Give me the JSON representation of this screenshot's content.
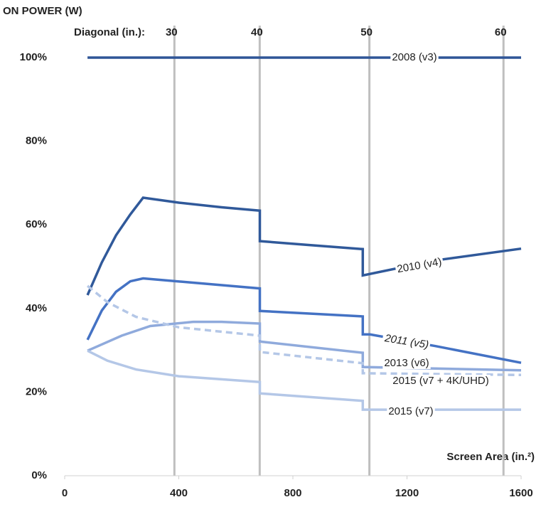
{
  "chart_data": {
    "type": "line",
    "title": "ON POWER (W)",
    "xlabel": "Screen Area (in.²)",
    "x2label": "Diagonal (in.):",
    "xlim": [
      0,
      1600
    ],
    "ylim": [
      0,
      100
    ],
    "xticks": [
      0,
      400,
      800,
      1200,
      1600
    ],
    "yticks": [
      {
        "value": 0,
        "label": "0%"
      },
      {
        "value": 20,
        "label": "20%"
      },
      {
        "value": 40,
        "label": "40%"
      },
      {
        "value": 60,
        "label": "60%"
      },
      {
        "value": 80,
        "label": "80%"
      },
      {
        "value": 100,
        "label": "100%"
      }
    ],
    "x2ticks": [
      {
        "value": 384.6,
        "label": "30"
      },
      {
        "value": 683.7,
        "label": "40"
      },
      {
        "value": 1068.2,
        "label": "50"
      },
      {
        "value": 1538.3,
        "label": "60"
      }
    ],
    "grid": true,
    "series": [
      {
        "name": "2008 (v3)",
        "color": "#2f5597",
        "x": [
          80,
          1600
        ],
        "values": [
          100,
          100
        ]
      },
      {
        "name": "2010 (v4)",
        "color": "#30599a",
        "x": [
          80,
          130,
          180,
          230,
          275,
          400,
          550,
          684,
          684,
          850,
          1045,
          1045,
          1300,
          1600
        ],
        "values": [
          43.2,
          51,
          57.5,
          62.5,
          66.5,
          65.3,
          64.2,
          63.4,
          56.1,
          55.2,
          54.2,
          47.9,
          51.5,
          54.3
        ]
      },
      {
        "name": "2011 (v5)",
        "color": "#4472c4",
        "x": [
          80,
          130,
          180,
          230,
          275,
          684,
          684,
          1045,
          1045,
          1070,
          1300,
          1600
        ],
        "values": [
          32.5,
          39.5,
          44,
          46.5,
          47.2,
          44.8,
          39.4,
          38.1,
          33.8,
          33.8,
          31,
          27.0
        ]
      },
      {
        "name": "2013 (v6)",
        "color": "#8faadc",
        "x": [
          80,
          200,
          300,
          450,
          550,
          684,
          684,
          1045,
          1045,
          1600
        ],
        "values": [
          29.9,
          33.5,
          35.8,
          36.8,
          36.8,
          36.4,
          32.1,
          29.4,
          26.0,
          25.2
        ]
      },
      {
        "name": "2015 (v7 + 4K/UHD)",
        "color": "#b4c7e7",
        "dashed": true,
        "x": [
          80,
          150,
          250,
          400,
          684,
          684,
          1045,
          1045,
          1600
        ],
        "values": [
          45.4,
          41.5,
          38,
          35.5,
          33.5,
          29.6,
          26.9,
          24.5,
          24.1
        ]
      },
      {
        "name": "2015 (v7)",
        "color": "#b4c7e7",
        "x": [
          80,
          150,
          250,
          400,
          684,
          684,
          1045,
          1045,
          1600
        ],
        "values": [
          29.9,
          27.5,
          25.4,
          23.8,
          22.4,
          19.7,
          17.9,
          15.8,
          15.8
        ]
      }
    ]
  }
}
